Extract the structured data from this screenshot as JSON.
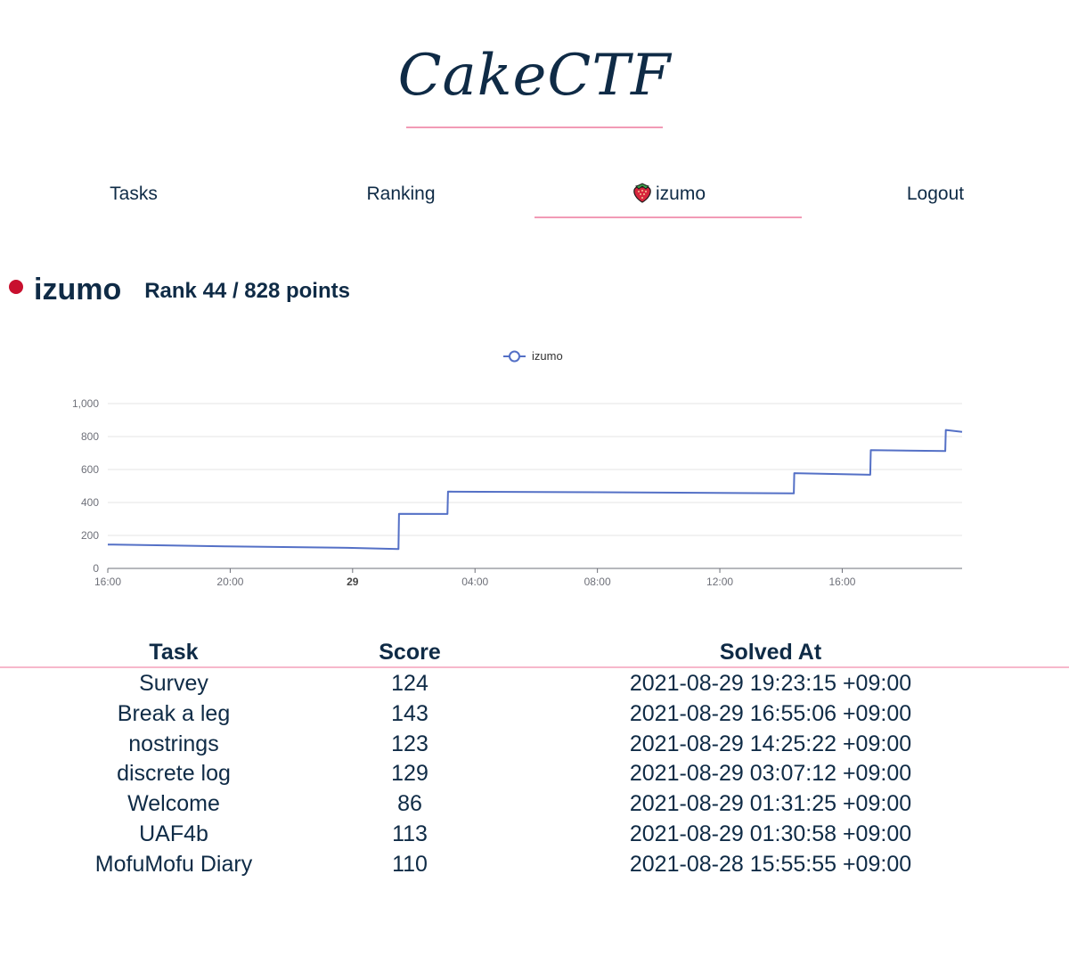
{
  "site": {
    "logo_text": "CakeCTF"
  },
  "nav": {
    "items": [
      {
        "label": "Tasks",
        "name": "nav-tasks"
      },
      {
        "label": "Ranking",
        "name": "nav-ranking"
      },
      {
        "label": "izumo",
        "name": "nav-profile",
        "icon": "strawberry-icon",
        "active": true
      },
      {
        "label": "Logout",
        "name": "nav-logout"
      }
    ]
  },
  "profile": {
    "status_color": "#c8102e",
    "username": "izumo",
    "rank_text": "Rank 44 / 828 points"
  },
  "chart_data": {
    "type": "line",
    "step": true,
    "legend": {
      "position": "top-center",
      "entries": [
        "izumo"
      ]
    },
    "series": [
      {
        "name": "izumo",
        "color": "#5470c6",
        "points": [
          [
            "2021-08-28 16:00",
            145
          ],
          [
            "2021-08-28 17:50",
            140
          ],
          [
            "2021-08-28 19:50",
            134
          ],
          [
            "2021-08-28 23:50",
            125
          ],
          [
            "2021-08-29 01:30",
            118
          ],
          [
            "2021-08-29 01:31",
            331
          ],
          [
            "2021-08-29 03:06",
            330
          ],
          [
            "2021-08-29 03:07",
            466
          ],
          [
            "2021-08-29 08:00",
            462
          ],
          [
            "2021-08-29 14:25",
            455
          ],
          [
            "2021-08-29 14:26",
            578
          ],
          [
            "2021-08-29 16:55",
            568
          ],
          [
            "2021-08-29 16:56",
            718
          ],
          [
            "2021-08-29 19:22",
            712
          ],
          [
            "2021-08-29 19:23",
            840
          ],
          [
            "2021-08-29 19:55",
            828
          ]
        ]
      }
    ],
    "x_range": [
      "2021-08-28 16:00",
      "2021-08-29 19:55"
    ],
    "x_ticks": [
      {
        "at": "2021-08-28 16:00",
        "label": "16:00"
      },
      {
        "at": "2021-08-28 20:00",
        "label": "20:00"
      },
      {
        "at": "2021-08-29 00:00",
        "label": "29",
        "bold": true
      },
      {
        "at": "2021-08-29 04:00",
        "label": "04:00"
      },
      {
        "at": "2021-08-29 08:00",
        "label": "08:00"
      },
      {
        "at": "2021-08-29 12:00",
        "label": "12:00"
      },
      {
        "at": "2021-08-29 16:00",
        "label": "16:00"
      }
    ],
    "y_ticks": [
      "0",
      "200",
      "400",
      "600",
      "800",
      "1,000"
    ],
    "ylim": [
      0,
      1000
    ],
    "grid": true
  },
  "solves": {
    "headers": [
      "Task",
      "Score",
      "Solved At"
    ],
    "rows": [
      [
        "Survey",
        "124",
        "2021-08-29 19:23:15 +09:00"
      ],
      [
        "Break a leg",
        "143",
        "2021-08-29 16:55:06 +09:00"
      ],
      [
        "nostrings",
        "123",
        "2021-08-29 14:25:22 +09:00"
      ],
      [
        "discrete log",
        "129",
        "2021-08-29 03:07:12 +09:00"
      ],
      [
        "Welcome",
        "86",
        "2021-08-29 01:31:25 +09:00"
      ],
      [
        "UAF4b",
        "113",
        "2021-08-29 01:30:58 +09:00"
      ],
      [
        "MofuMofu Diary",
        "110",
        "2021-08-28 15:55:55 +09:00"
      ]
    ]
  }
}
